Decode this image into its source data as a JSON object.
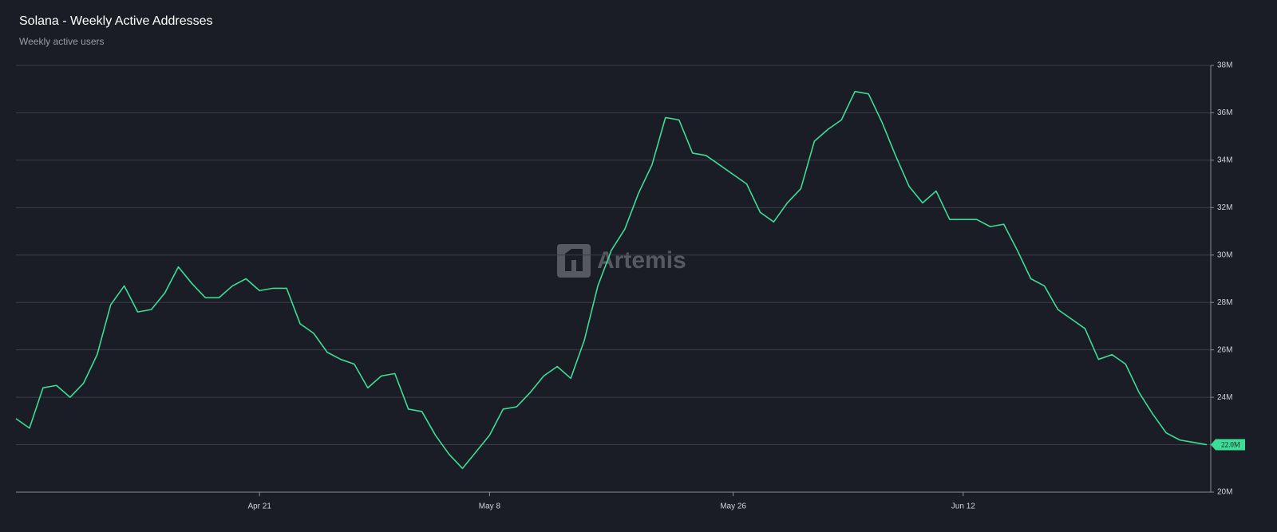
{
  "chart_data": {
    "type": "line",
    "title": "Solana - Weekly Active Addresses",
    "subtitle": "Weekly active users",
    "watermark": "Artemis",
    "categories": [
      null,
      null,
      null,
      null,
      null,
      null,
      null,
      null,
      null,
      null,
      null,
      null,
      null,
      null,
      null,
      null,
      null,
      null,
      "Apr 21",
      null,
      null,
      null,
      null,
      null,
      null,
      null,
      null,
      null,
      null,
      null,
      null,
      null,
      null,
      null,
      null,
      "May 8",
      null,
      null,
      null,
      null,
      null,
      null,
      null,
      null,
      null,
      null,
      null,
      null,
      null,
      null,
      null,
      null,
      null,
      "May 26",
      null,
      null,
      null,
      null,
      null,
      null,
      null,
      null,
      null,
      null,
      null,
      null,
      null,
      null,
      null,
      null,
      "Jun 12",
      null,
      null,
      null,
      null,
      null,
      null,
      null,
      null,
      null,
      null,
      null,
      null,
      null,
      null,
      null,
      null,
      null,
      null
    ],
    "values": [
      23100000,
      22700000,
      24400000,
      24500000,
      24000000,
      24600000,
      25800000,
      27900000,
      28700000,
      27600000,
      27700000,
      28400000,
      29500000,
      28800000,
      28200000,
      28200000,
      28700000,
      29000000,
      28500000,
      28600000,
      28600000,
      27100000,
      26700000,
      25900000,
      25600000,
      25400000,
      24400000,
      24900000,
      25000000,
      23500000,
      23400000,
      22400000,
      21600000,
      21000000,
      21700000,
      22400000,
      23500000,
      23600000,
      24200000,
      24900000,
      25300000,
      24800000,
      26400000,
      28700000,
      30200000,
      31100000,
      32600000,
      33800000,
      35800000,
      35700000,
      34300000,
      34200000,
      33800000,
      33400000,
      33000000,
      31800000,
      31400000,
      32200000,
      32800000,
      34800000,
      35300000,
      35700000,
      36900000,
      36800000,
      35600000,
      34200000,
      32900000,
      32200000,
      32700000,
      31500000,
      31500000,
      31500000,
      31200000,
      31300000,
      30200000,
      29000000,
      28700000,
      27700000,
      27300000,
      26900000,
      25600000,
      25800000,
      25400000,
      24200000,
      23300000,
      22500000,
      22200000,
      22100000,
      22000000
    ],
    "color": "#3ddc97",
    "last_value_label": "22.0M",
    "ylim": [
      20000000,
      38000000
    ],
    "yticks": [
      {
        "value": 20000000,
        "label": "20M"
      },
      {
        "value": 22000000,
        "label": "22M"
      },
      {
        "value": 24000000,
        "label": "24M"
      },
      {
        "value": 26000000,
        "label": "26M"
      },
      {
        "value": 28000000,
        "label": "28M"
      },
      {
        "value": 30000000,
        "label": "30M"
      },
      {
        "value": 32000000,
        "label": "32M"
      },
      {
        "value": 34000000,
        "label": "34M"
      },
      {
        "value": 36000000,
        "label": "36M"
      },
      {
        "value": 38000000,
        "label": "38M"
      }
    ],
    "grid": true
  }
}
